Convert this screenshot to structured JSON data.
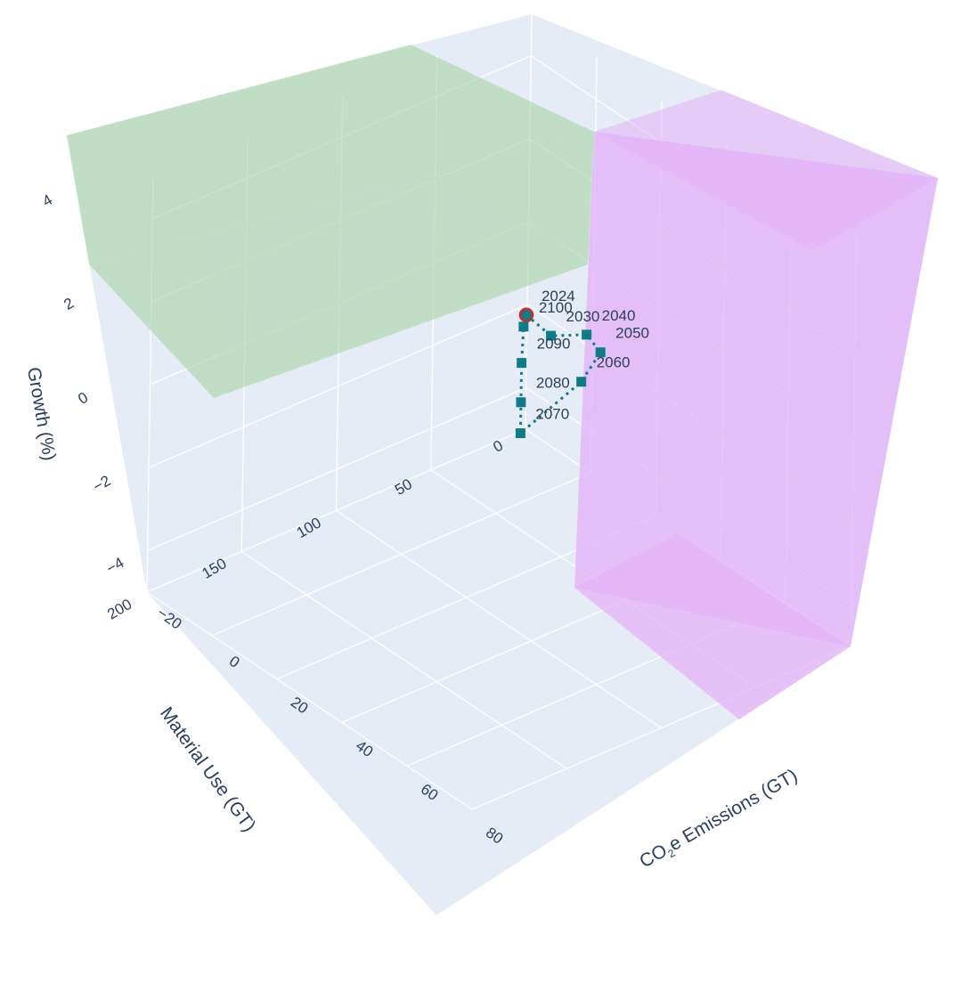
{
  "chart_data": {
    "type": "scatter3d",
    "axes": {
      "x": {
        "title_prefix": "CO",
        "title_sub": "2",
        "title_suffix": "e Emissions (GT)",
        "ticks": [
          "−20",
          "0",
          "20",
          "40",
          "60",
          "80"
        ],
        "tick_values": [
          -20,
          0,
          20,
          40,
          60,
          80
        ],
        "range": [
          -20,
          80
        ]
      },
      "y": {
        "title": "Material Use (GT)",
        "ticks": [
          "0",
          "50",
          "100",
          "150",
          "200"
        ],
        "tick_values": [
          0,
          50,
          100,
          150,
          200
        ],
        "range": [
          0,
          200
        ]
      },
      "z": {
        "title": "Growth (%)",
        "ticks": [
          "−4",
          "2",
          "0",
          "−2",
          "4"
        ],
        "tick_values": [
          -4,
          2,
          0,
          -2,
          4
        ],
        "range": [
          -5,
          5
        ]
      }
    },
    "series": [
      {
        "mode": "lines+markers+text",
        "line_color": "#0e7c86",
        "marker_color": "#0e7c86",
        "points": [
          {
            "label": "2024",
            "x": 37,
            "y": 100,
            "z": 2.7,
            "highlight": true
          },
          {
            "label": "2030",
            "x": 40,
            "y": 92,
            "z": 2.2
          },
          {
            "label": "2040",
            "x": 44,
            "y": 80,
            "z": 2.2
          },
          {
            "label": "2050",
            "x": 46,
            "y": 76,
            "z": 1.8
          },
          {
            "label": "2060",
            "x": 30,
            "y": 58,
            "z": -0.1
          },
          {
            "label": "2070",
            "x": 14,
            "y": 62,
            "z": -2.1
          },
          {
            "label": "2080",
            "x": 10,
            "y": 55,
            "z": -1.7
          },
          {
            "label": "2090",
            "x": 6,
            "y": 48,
            "z": -1.1
          },
          {
            "label": "2100",
            "x": 3,
            "y": 42,
            "z": -0.5
          }
        ]
      }
    ],
    "regions": [
      {
        "name": "",
        "color": "#a7d3a6",
        "opacity": 0.6
      },
      {
        "name": "",
        "color": "#e4b3f7",
        "opacity": 0.8
      }
    ],
    "grid": true,
    "panel_color": "#e5ecf6",
    "highlight_color": "#d62728"
  }
}
